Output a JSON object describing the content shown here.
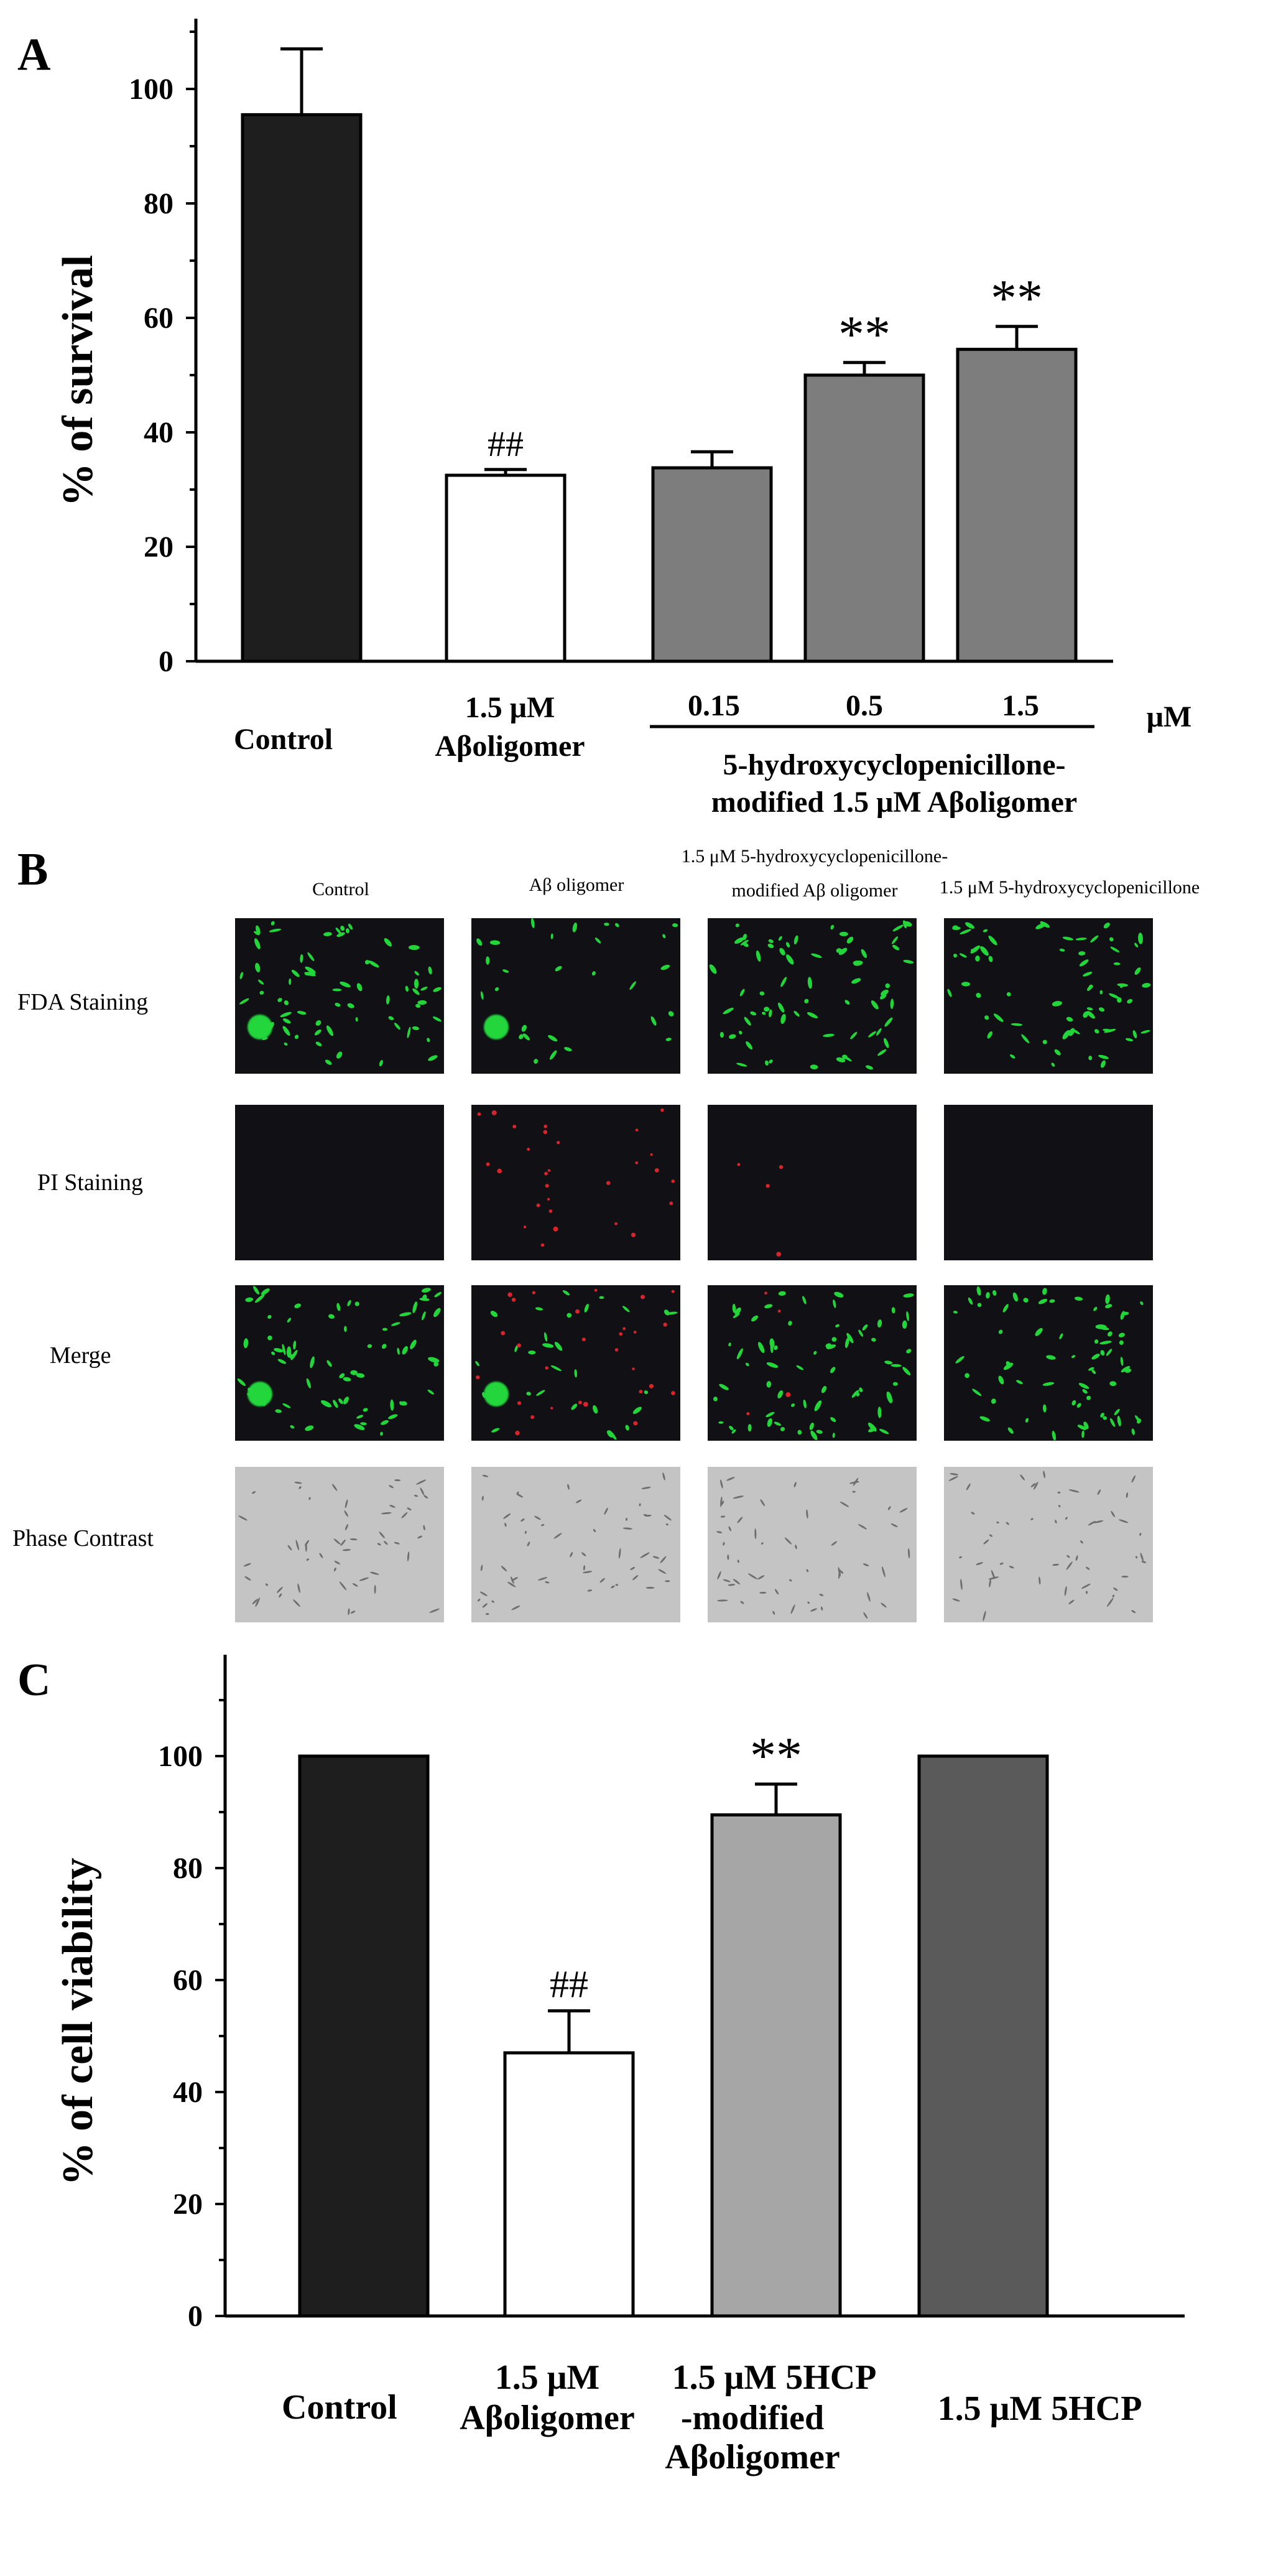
{
  "panels": {
    "a": {
      "letter": "A",
      "ylabel": "% of survival",
      "yticks": [
        0,
        20,
        40,
        60,
        80,
        100
      ],
      "group_label_line1": "5-hydroxycyclopenicillone-",
      "group_label_line2": "modified 1.5 μM Aβoligomer",
      "unit_label": "μM",
      "labels": {
        "control": "Control",
        "ab_line1": "1.5 μM",
        "ab_line2": "Aβoligomer",
        "d1": "0.15",
        "d2": "0.5",
        "d3": "1.5"
      },
      "annotations": {
        "hash": "##",
        "star1": "**",
        "star2": "**"
      }
    },
    "b": {
      "letter": "B",
      "columns": [
        "Control",
        "Aβ oligomer",
        "1.5 μM 5-hydroxycyclopenicillone-",
        "modified Aβ oligomer",
        "1.5 μM 5-hydroxycyclopenicillone"
      ],
      "rows": [
        "FDA Staining",
        "PI Staining",
        "Merge",
        "Phase Contrast"
      ]
    },
    "c": {
      "letter": "C",
      "ylabel": "% of cell viability",
      "yticks": [
        0,
        20,
        40,
        60,
        80,
        100
      ],
      "labels": {
        "control": "Control",
        "ab_line1": "1.5 μM",
        "ab_line2": "Aβoligomer",
        "mod_line1": "1.5 μM  5HCP",
        "mod_line2": "-modified",
        "mod_line3": "Aβoligomer",
        "hcp": "1.5 μM  5HCP"
      },
      "annotations": {
        "hash": "##",
        "star": "**"
      }
    }
  },
  "chart_data": [
    {
      "type": "bar",
      "title": "",
      "xlabel": "",
      "ylabel": "% of survival",
      "ylim": [
        0,
        120
      ],
      "categories": [
        "Control",
        "1.5 μM Aβoligomer",
        "0.15",
        "0.5",
        "1.5"
      ],
      "values": [
        95.5,
        32.5,
        33.8,
        50.0,
        54.5
      ],
      "errors": [
        11.5,
        1.0,
        2.8,
        2.2,
        4.0
      ],
      "colors": [
        "#1e1e1e",
        "#ffffff",
        "#7d7d7d",
        "#7d7d7d",
        "#7d7d7d"
      ]
    },
    {
      "type": "bar",
      "title": "",
      "xlabel": "",
      "ylabel": "% of cell viability",
      "ylim": [
        0,
        110
      ],
      "categories": [
        "Control",
        "1.5 μM Aβoligomer",
        "1.5 μM 5HCP-modified Aβoligomer",
        "1.5 μM 5HCP"
      ],
      "values": [
        100,
        47.0,
        89.5,
        100
      ],
      "errors": [
        0,
        7.5,
        5.5,
        0
      ],
      "colors": [
        "#1e1e1e",
        "#ffffff",
        "#a6a6a6",
        "#5a5a5a"
      ]
    }
  ]
}
